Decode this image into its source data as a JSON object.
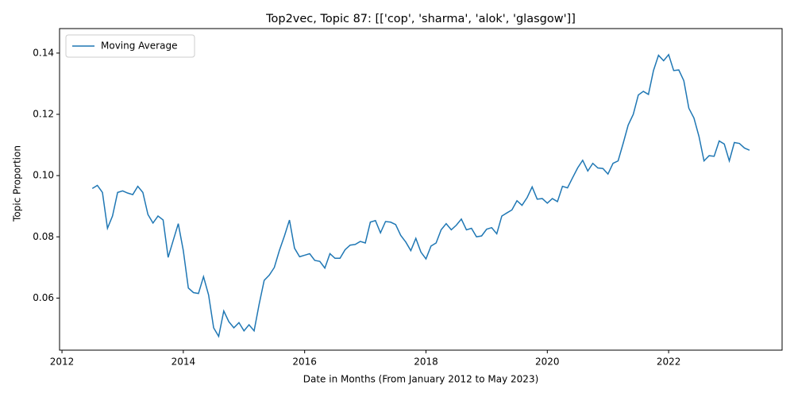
{
  "chart_data": {
    "type": "line",
    "title": "Top2vec, Topic 87: [['cop', 'sharma', 'alok', 'glasgow']]",
    "x_label": "Date in Months (From January 2012 to May 2023)",
    "y_label": "Topic Proportion",
    "legend": "upper left",
    "grid": false,
    "xlim": [
      2011.96,
      2023.87
    ],
    "ylim": [
      0.043,
      0.148
    ],
    "xticks": [
      2012,
      2014,
      2016,
      2018,
      2020,
      2022
    ],
    "yticks": [
      0.06,
      0.08,
      {
        "value": 0.1,
        "label": "0.10"
      },
      0.12,
      0.14
    ],
    "x": [
      2012.5,
      2012.583,
      2012.667,
      2012.75,
      2012.833,
      2012.917,
      2013,
      2013.083,
      2013.167,
      2013.25,
      2013.333,
      2013.417,
      2013.5,
      2013.583,
      2013.667,
      2013.75,
      2013.833,
      2013.917,
      2014,
      2014.083,
      2014.167,
      2014.25,
      2014.333,
      2014.417,
      2014.5,
      2014.583,
      2014.667,
      2014.75,
      2014.833,
      2014.917,
      2015,
      2015.083,
      2015.167,
      2015.25,
      2015.333,
      2015.417,
      2015.5,
      2015.583,
      2015.667,
      2015.75,
      2015.833,
      2015.917,
      2016,
      2016.083,
      2016.167,
      2016.25,
      2016.333,
      2016.417,
      2016.5,
      2016.583,
      2016.667,
      2016.75,
      2016.833,
      2016.917,
      2017,
      2017.083,
      2017.167,
      2017.25,
      2017.333,
      2017.417,
      2017.5,
      2017.583,
      2017.667,
      2017.75,
      2017.833,
      2017.917,
      2018,
      2018.083,
      2018.167,
      2018.25,
      2018.333,
      2018.417,
      2018.5,
      2018.583,
      2018.667,
      2018.75,
      2018.833,
      2018.917,
      2019,
      2019.083,
      2019.167,
      2019.25,
      2019.333,
      2019.417,
      2019.5,
      2019.583,
      2019.667,
      2019.75,
      2019.833,
      2019.917,
      2020,
      2020.083,
      2020.167,
      2020.25,
      2020.333,
      2020.417,
      2020.5,
      2020.583,
      2020.667,
      2020.75,
      2020.833,
      2020.917,
      2021,
      2021.083,
      2021.167,
      2021.25,
      2021.333,
      2021.417,
      2021.5,
      2021.583,
      2021.667,
      2021.75,
      2021.833,
      2021.917,
      2022,
      2022.083,
      2022.167,
      2022.25,
      2022.333,
      2022.417,
      2022.5,
      2022.583,
      2022.667,
      2022.75,
      2022.833,
      2022.917,
      2023,
      2023.083,
      2023.167,
      2023.25,
      2023.333
    ],
    "series": [
      {
        "name": "Moving Average",
        "color": "#1f77b4",
        "values": [
          0.0958,
          0.0968,
          0.0945,
          0.0828,
          0.0868,
          0.0945,
          0.095,
          0.0943,
          0.0938,
          0.0965,
          0.0945,
          0.0873,
          0.0845,
          0.0868,
          0.0855,
          0.0733,
          0.0788,
          0.0843,
          0.0755,
          0.0633,
          0.0618,
          0.0615,
          0.067,
          0.061,
          0.0503,
          0.0475,
          0.0558,
          0.0523,
          0.0503,
          0.052,
          0.0493,
          0.0513,
          0.0493,
          0.058,
          0.0658,
          0.0675,
          0.07,
          0.0755,
          0.0803,
          0.0855,
          0.0763,
          0.0735,
          0.074,
          0.0745,
          0.0723,
          0.072,
          0.0698,
          0.0745,
          0.073,
          0.073,
          0.0758,
          0.0773,
          0.0775,
          0.0785,
          0.078,
          0.0848,
          0.0853,
          0.0813,
          0.085,
          0.0848,
          0.084,
          0.0805,
          0.0783,
          0.0755,
          0.0795,
          0.075,
          0.0728,
          0.077,
          0.078,
          0.0823,
          0.0843,
          0.0823,
          0.0838,
          0.0858,
          0.0823,
          0.0828,
          0.08,
          0.0803,
          0.0825,
          0.083,
          0.081,
          0.0868,
          0.0878,
          0.0888,
          0.0918,
          0.0903,
          0.0928,
          0.0963,
          0.0923,
          0.0925,
          0.091,
          0.0925,
          0.0915,
          0.0965,
          0.096,
          0.0993,
          0.1025,
          0.105,
          0.1015,
          0.104,
          0.1025,
          0.1023,
          0.1005,
          0.104,
          0.1048,
          0.1105,
          0.1165,
          0.12,
          0.1263,
          0.1275,
          0.1265,
          0.1343,
          0.1393,
          0.1375,
          0.1395,
          0.1343,
          0.1345,
          0.131,
          0.122,
          0.1188,
          0.1128,
          0.1048,
          0.1065,
          0.1063,
          0.1113,
          0.1103,
          0.1048,
          0.1108,
          0.1105,
          0.109,
          0.1083
        ]
      }
    ]
  }
}
